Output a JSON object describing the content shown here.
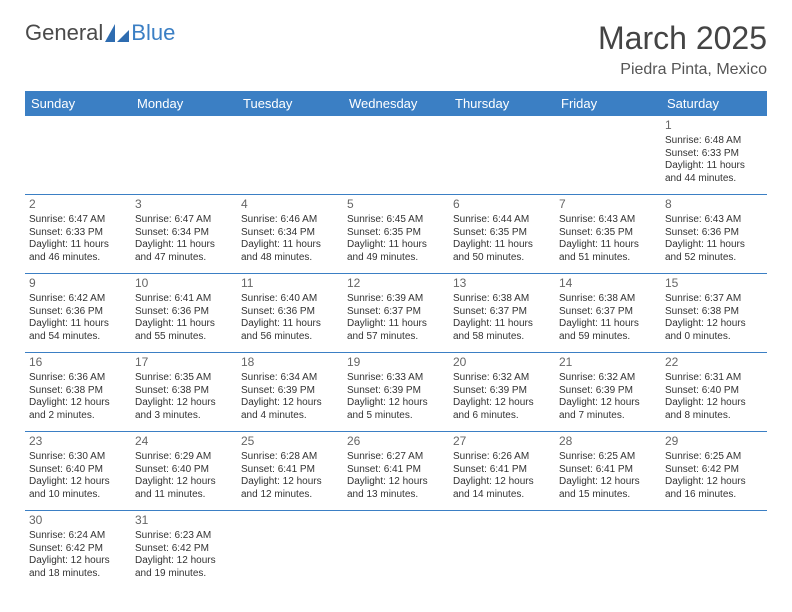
{
  "logo": {
    "part1": "General",
    "part2": "Blue"
  },
  "title": "March 2025",
  "location": "Piedra Pinta, Mexico",
  "colors": {
    "header_bg": "#3b7fc4",
    "header_text": "#ffffff",
    "border": "#3b7fc4"
  },
  "weekdays": [
    "Sunday",
    "Monday",
    "Tuesday",
    "Wednesday",
    "Thursday",
    "Friday",
    "Saturday"
  ],
  "weeks": [
    [
      null,
      null,
      null,
      null,
      null,
      null,
      {
        "n": "1",
        "sr": "Sunrise: 6:48 AM",
        "ss": "Sunset: 6:33 PM",
        "dl": "Daylight: 11 hours and 44 minutes."
      }
    ],
    [
      {
        "n": "2",
        "sr": "Sunrise: 6:47 AM",
        "ss": "Sunset: 6:33 PM",
        "dl": "Daylight: 11 hours and 46 minutes."
      },
      {
        "n": "3",
        "sr": "Sunrise: 6:47 AM",
        "ss": "Sunset: 6:34 PM",
        "dl": "Daylight: 11 hours and 47 minutes."
      },
      {
        "n": "4",
        "sr": "Sunrise: 6:46 AM",
        "ss": "Sunset: 6:34 PM",
        "dl": "Daylight: 11 hours and 48 minutes."
      },
      {
        "n": "5",
        "sr": "Sunrise: 6:45 AM",
        "ss": "Sunset: 6:35 PM",
        "dl": "Daylight: 11 hours and 49 minutes."
      },
      {
        "n": "6",
        "sr": "Sunrise: 6:44 AM",
        "ss": "Sunset: 6:35 PM",
        "dl": "Daylight: 11 hours and 50 minutes."
      },
      {
        "n": "7",
        "sr": "Sunrise: 6:43 AM",
        "ss": "Sunset: 6:35 PM",
        "dl": "Daylight: 11 hours and 51 minutes."
      },
      {
        "n": "8",
        "sr": "Sunrise: 6:43 AM",
        "ss": "Sunset: 6:36 PM",
        "dl": "Daylight: 11 hours and 52 minutes."
      }
    ],
    [
      {
        "n": "9",
        "sr": "Sunrise: 6:42 AM",
        "ss": "Sunset: 6:36 PM",
        "dl": "Daylight: 11 hours and 54 minutes."
      },
      {
        "n": "10",
        "sr": "Sunrise: 6:41 AM",
        "ss": "Sunset: 6:36 PM",
        "dl": "Daylight: 11 hours and 55 minutes."
      },
      {
        "n": "11",
        "sr": "Sunrise: 6:40 AM",
        "ss": "Sunset: 6:36 PM",
        "dl": "Daylight: 11 hours and 56 minutes."
      },
      {
        "n": "12",
        "sr": "Sunrise: 6:39 AM",
        "ss": "Sunset: 6:37 PM",
        "dl": "Daylight: 11 hours and 57 minutes."
      },
      {
        "n": "13",
        "sr": "Sunrise: 6:38 AM",
        "ss": "Sunset: 6:37 PM",
        "dl": "Daylight: 11 hours and 58 minutes."
      },
      {
        "n": "14",
        "sr": "Sunrise: 6:38 AM",
        "ss": "Sunset: 6:37 PM",
        "dl": "Daylight: 11 hours and 59 minutes."
      },
      {
        "n": "15",
        "sr": "Sunrise: 6:37 AM",
        "ss": "Sunset: 6:38 PM",
        "dl": "Daylight: 12 hours and 0 minutes."
      }
    ],
    [
      {
        "n": "16",
        "sr": "Sunrise: 6:36 AM",
        "ss": "Sunset: 6:38 PM",
        "dl": "Daylight: 12 hours and 2 minutes."
      },
      {
        "n": "17",
        "sr": "Sunrise: 6:35 AM",
        "ss": "Sunset: 6:38 PM",
        "dl": "Daylight: 12 hours and 3 minutes."
      },
      {
        "n": "18",
        "sr": "Sunrise: 6:34 AM",
        "ss": "Sunset: 6:39 PM",
        "dl": "Daylight: 12 hours and 4 minutes."
      },
      {
        "n": "19",
        "sr": "Sunrise: 6:33 AM",
        "ss": "Sunset: 6:39 PM",
        "dl": "Daylight: 12 hours and 5 minutes."
      },
      {
        "n": "20",
        "sr": "Sunrise: 6:32 AM",
        "ss": "Sunset: 6:39 PM",
        "dl": "Daylight: 12 hours and 6 minutes."
      },
      {
        "n": "21",
        "sr": "Sunrise: 6:32 AM",
        "ss": "Sunset: 6:39 PM",
        "dl": "Daylight: 12 hours and 7 minutes."
      },
      {
        "n": "22",
        "sr": "Sunrise: 6:31 AM",
        "ss": "Sunset: 6:40 PM",
        "dl": "Daylight: 12 hours and 8 minutes."
      }
    ],
    [
      {
        "n": "23",
        "sr": "Sunrise: 6:30 AM",
        "ss": "Sunset: 6:40 PM",
        "dl": "Daylight: 12 hours and 10 minutes."
      },
      {
        "n": "24",
        "sr": "Sunrise: 6:29 AM",
        "ss": "Sunset: 6:40 PM",
        "dl": "Daylight: 12 hours and 11 minutes."
      },
      {
        "n": "25",
        "sr": "Sunrise: 6:28 AM",
        "ss": "Sunset: 6:41 PM",
        "dl": "Daylight: 12 hours and 12 minutes."
      },
      {
        "n": "26",
        "sr": "Sunrise: 6:27 AM",
        "ss": "Sunset: 6:41 PM",
        "dl": "Daylight: 12 hours and 13 minutes."
      },
      {
        "n": "27",
        "sr": "Sunrise: 6:26 AM",
        "ss": "Sunset: 6:41 PM",
        "dl": "Daylight: 12 hours and 14 minutes."
      },
      {
        "n": "28",
        "sr": "Sunrise: 6:25 AM",
        "ss": "Sunset: 6:41 PM",
        "dl": "Daylight: 12 hours and 15 minutes."
      },
      {
        "n": "29",
        "sr": "Sunrise: 6:25 AM",
        "ss": "Sunset: 6:42 PM",
        "dl": "Daylight: 12 hours and 16 minutes."
      }
    ],
    [
      {
        "n": "30",
        "sr": "Sunrise: 6:24 AM",
        "ss": "Sunset: 6:42 PM",
        "dl": "Daylight: 12 hours and 18 minutes."
      },
      {
        "n": "31",
        "sr": "Sunrise: 6:23 AM",
        "ss": "Sunset: 6:42 PM",
        "dl": "Daylight: 12 hours and 19 minutes."
      },
      null,
      null,
      null,
      null,
      null
    ]
  ]
}
